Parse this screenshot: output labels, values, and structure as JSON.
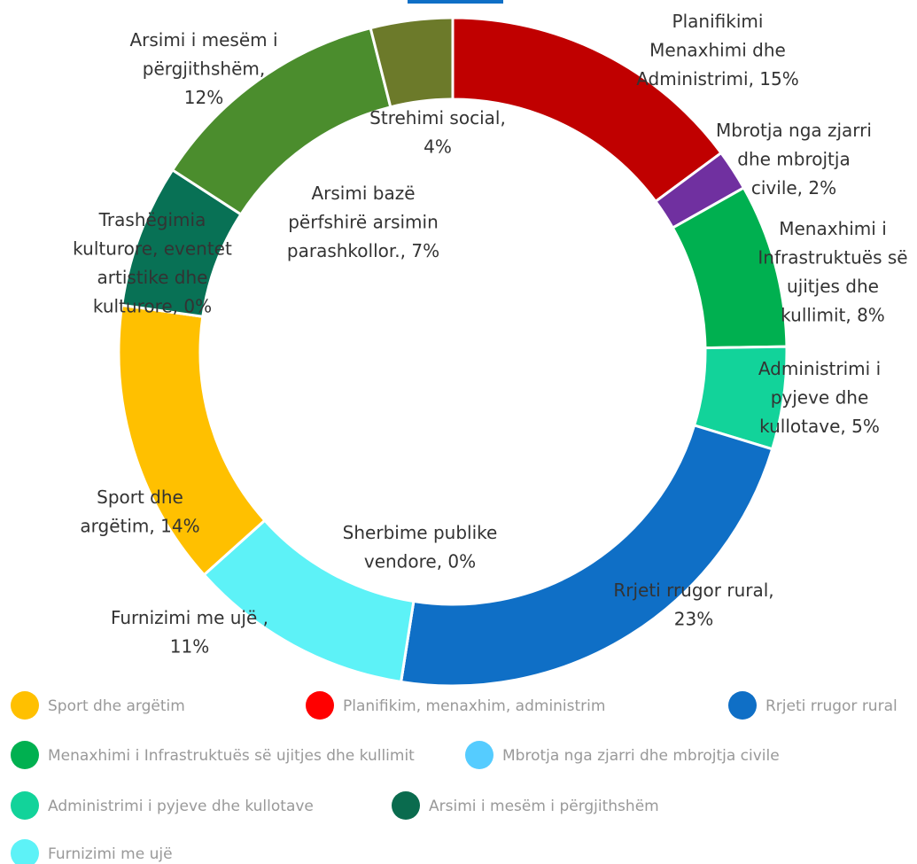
{
  "chart_data": {
    "type": "donut",
    "categories": [
      "Planifikimi Menaxhimi dhe Administrimi",
      "Mbrotja nga zjarri dhe mbrojtja civile",
      "Menaxhimi i Infrastruktuës së ujitjes dhe kullimit",
      "Administrimi i pyjeve dhe kullotave",
      "Rrjeti rrugor rural",
      "Sherbime publike vendore",
      "Furnizimi me ujë",
      "Sport dhe argëtim",
      "Trashëgimia kulturore, eventet artistike dhe kulturore",
      "Arsimi bazë përfshirë arsimin parashkollor.",
      "Arsimi i mesëm i përgjithshëm",
      "Strehimi social"
    ],
    "values": [
      15,
      2,
      8,
      5,
      23,
      0,
      11,
      14,
      0,
      7,
      12,
      4
    ],
    "colors": [
      "#c00000",
      "#7030a0",
      "#00b050",
      "#12d39a",
      "#0f6fc6",
      "#ffffff",
      "#5df2f7",
      "#ffc000",
      "#087155",
      "#087155",
      "#4b8d2d",
      "#6c7a2a"
    ],
    "value_labels": [
      [
        "Planifikimi",
        "Menaxhimi dhe",
        "Administrimi, 15%"
      ],
      [
        "Mbrotja nga zjarri",
        "dhe mbrojtja",
        "civile, 2%"
      ],
      [
        "Menaxhimi i",
        "Infrastruktuës së",
        "ujitjes dhe",
        "kullimit, 8%"
      ],
      [
        "Administrimi i",
        "pyjeve dhe",
        "kullotave, 5%"
      ],
      [
        "Rrjeti rrugor rural,",
        "23%"
      ],
      [
        "Sherbime publike",
        "vendore, 0%"
      ],
      [
        "Furnizimi me ujë ,",
        "11%"
      ],
      [
        "Sport dhe",
        "argëtim, 14%"
      ],
      [
        "Trashëgimia",
        "kulturore, eventet",
        "artistike dhe",
        "kulturore, 0%"
      ],
      [
        "Arsimi bazë",
        "përfshirë arsimin",
        "parashkollor., 7%"
      ],
      [
        "Arsimi i mesëm i",
        "përgjithshëm,",
        "12%"
      ],
      [
        "Strehimi social,",
        "4%"
      ]
    ],
    "legend": [
      {
        "label": "Sport dhe argëtim",
        "color": "#ffc000"
      },
      {
        "label": "Planifikim, menaxhim, administrim",
        "color": "#ff0000"
      },
      {
        "label": "Rrjeti rrugor rural",
        "color": "#0f6fc6"
      },
      {
        "label": "Menaxhimi i Infrastruktuës së ujitjes dhe kullimit",
        "color": "#00b050"
      },
      {
        "label": "Mbrotja nga zjarri dhe mbrojtja civile",
        "color": "#55ccff"
      },
      {
        "label": "Administrimi i pyjeve dhe kullotave",
        "color": "#12d39a"
      },
      {
        "label": "Arsimi i mesëm i përgjithshëm",
        "color": "#0a6b4e"
      },
      {
        "label": "Furnizimi me ujë",
        "color": "#5df2f7"
      }
    ]
  }
}
